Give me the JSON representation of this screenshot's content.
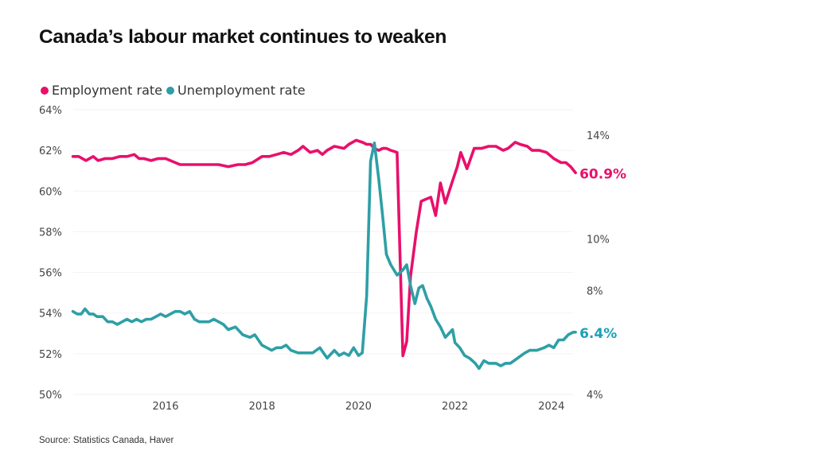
{
  "chart_data": {
    "type": "line",
    "title": "Canada’s labour market continues to weaken",
    "source": "Source: Statistics Canada, Haver",
    "xlabel": "",
    "x_ticks": [
      "2016",
      "2018",
      "2020",
      "2022",
      "2024"
    ],
    "x_tick_values": [
      2016,
      2018,
      2020,
      2022,
      2024
    ],
    "xlim": [
      2014.08,
      2024.5
    ],
    "legend_position": "top-left",
    "grid": true,
    "left_axis": {
      "ylabel": "",
      "ylim": [
        50,
        64
      ],
      "ticks": [
        "64%",
        "62%",
        "60%",
        "58%",
        "56%",
        "54%",
        "52%",
        "50%"
      ],
      "tick_values": [
        64,
        62,
        60,
        58,
        56,
        54,
        52,
        50
      ]
    },
    "right_axis": {
      "ylabel": "",
      "ylim": [
        4,
        15
      ],
      "ticks": [
        "14%",
        "10%",
        "8%",
        "4%"
      ],
      "tick_values": [
        14,
        10,
        8,
        4
      ]
    },
    "series": [
      {
        "name": "Employment rate",
        "axis": "left",
        "color": "#e8106b",
        "end_label": "60.9%",
        "x": [
          2014.08,
          2014.2,
          2014.35,
          2014.5,
          2014.6,
          2014.75,
          2014.9,
          2015.05,
          2015.2,
          2015.35,
          2015.45,
          2015.55,
          2015.7,
          2015.85,
          2016.0,
          2016.3,
          2016.5,
          2016.6,
          2016.75,
          2016.9,
          2017.1,
          2017.3,
          2017.5,
          2017.65,
          2017.8,
          2018.0,
          2018.15,
          2018.3,
          2018.45,
          2018.6,
          2018.75,
          2018.85,
          2019.0,
          2019.15,
          2019.25,
          2019.35,
          2019.5,
          2019.7,
          2019.8,
          2019.95,
          2020.08,
          2020.17,
          2020.25,
          2020.33,
          2020.42,
          2020.5,
          2020.58,
          2020.67,
          2020.8,
          2020.92,
          2021.0,
          2021.08,
          2021.2,
          2021.3,
          2021.4,
          2021.5,
          2021.6,
          2021.7,
          2021.8,
          2021.95,
          2022.05,
          2022.12,
          2022.25,
          2022.4,
          2022.55,
          2022.7,
          2022.85,
          2023.0,
          2023.1,
          2023.25,
          2023.35,
          2023.5,
          2023.6,
          2023.75,
          2023.9,
          2024.05,
          2024.2,
          2024.3,
          2024.4,
          2024.5
        ],
        "values": [
          61.7,
          61.7,
          61.5,
          61.7,
          61.5,
          61.6,
          61.6,
          61.7,
          61.7,
          61.8,
          61.6,
          61.6,
          61.5,
          61.6,
          61.6,
          61.3,
          61.3,
          61.3,
          61.3,
          61.3,
          61.3,
          61.2,
          61.3,
          61.3,
          61.4,
          61.7,
          61.7,
          61.8,
          61.9,
          61.8,
          62.0,
          62.2,
          61.9,
          62.0,
          61.8,
          62.0,
          62.2,
          62.1,
          62.3,
          62.5,
          62.4,
          62.3,
          62.3,
          62.1,
          62.0,
          62.1,
          62.1,
          62.0,
          61.9,
          51.9,
          52.6,
          55.8,
          58.0,
          59.5,
          59.6,
          59.7,
          58.8,
          60.4,
          59.4,
          60.5,
          61.2,
          61.9,
          61.1,
          62.1,
          62.1,
          62.2,
          62.2,
          62.0,
          62.1,
          62.4,
          62.3,
          62.2,
          62.0,
          62.0,
          61.9,
          61.6,
          61.4,
          61.4,
          61.2,
          60.9
        ],
        "note": "employment x and values aligned by index; see x_employment"
      },
      {
        "name": "Unemployment rate",
        "axis": "right",
        "color": "#2e9fa6",
        "end_label": "6.4%",
        "x": [
          2014.08,
          2014.17,
          2014.25,
          2014.33,
          2014.42,
          2014.5,
          2014.58,
          2014.7,
          2014.8,
          2014.9,
          2015.0,
          2015.1,
          2015.2,
          2015.3,
          2015.4,
          2015.5,
          2015.6,
          2015.7,
          2015.8,
          2015.9,
          2016.0,
          2016.1,
          2016.2,
          2016.3,
          2016.4,
          2016.5,
          2016.6,
          2016.7,
          2016.8,
          2016.9,
          2017.0,
          2017.1,
          2017.2,
          2017.3,
          2017.45,
          2017.6,
          2017.75,
          2017.85,
          2018.0,
          2018.1,
          2018.2,
          2018.3,
          2018.4,
          2018.5,
          2018.6,
          2018.75,
          2018.9,
          2019.05,
          2019.2,
          2019.35,
          2019.5,
          2019.6,
          2019.7,
          2019.8,
          2019.9,
          2020.0,
          2020.08,
          2020.17,
          2020.25,
          2020.33,
          2020.42,
          2020.5,
          2020.58,
          2020.67,
          2020.8,
          2020.92,
          2021.0,
          2021.08,
          2021.17,
          2021.25,
          2021.33,
          2021.42,
          2021.5,
          2021.6,
          2021.7,
          2021.8,
          2021.95,
          2022.0,
          2022.1,
          2022.2,
          2022.3,
          2022.42,
          2022.5,
          2022.6,
          2022.7,
          2022.85,
          2022.95,
          2023.05,
          2023.15,
          2023.3,
          2023.45,
          2023.55,
          2023.7,
          2023.85,
          2023.95,
          2024.05,
          2024.15,
          2024.25,
          2024.35,
          2024.45,
          2024.5
        ],
        "values": [
          7.2,
          7.1,
          7.1,
          7.3,
          7.1,
          7.1,
          7.0,
          7.0,
          6.8,
          6.8,
          6.7,
          6.8,
          6.9,
          6.8,
          6.9,
          6.8,
          6.9,
          6.9,
          7.0,
          7.1,
          7.0,
          7.1,
          7.2,
          7.2,
          7.1,
          7.2,
          6.9,
          6.8,
          6.8,
          6.8,
          6.9,
          6.8,
          6.7,
          6.5,
          6.6,
          6.3,
          6.2,
          6.3,
          5.9,
          5.8,
          5.7,
          5.8,
          5.8,
          5.9,
          5.7,
          5.6,
          5.6,
          5.6,
          5.8,
          5.4,
          5.7,
          5.5,
          5.6,
          5.5,
          5.8,
          5.5,
          5.6,
          7.8,
          13.0,
          13.7,
          12.3,
          10.9,
          9.4,
          9.0,
          8.6,
          8.8,
          9.0,
          8.2,
          7.5,
          8.1,
          8.2,
          7.7,
          7.4,
          6.9,
          6.6,
          6.2,
          6.5,
          6.0,
          5.8,
          5.5,
          5.4,
          5.2,
          5.0,
          5.3,
          5.2,
          5.2,
          5.1,
          5.2,
          5.2,
          5.4,
          5.6,
          5.7,
          5.7,
          5.8,
          5.9,
          5.8,
          6.1,
          6.1,
          6.3,
          6.4,
          6.4
        ]
      }
    ]
  }
}
